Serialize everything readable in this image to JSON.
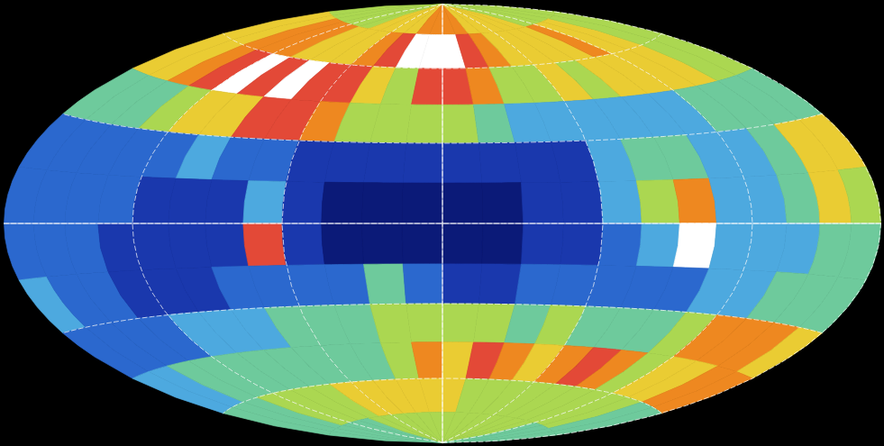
{
  "chart_data": {
    "type": "map",
    "lon": [
      172.5,
      157.5,
      142.5,
      127.5,
      112.5,
      97.5,
      82.5,
      67.5,
      52.5,
      37.5,
      22.5,
      7.5,
      -7.5,
      -22.5,
      -37.5,
      -52.5,
      -67.5,
      -82.5,
      -97.5,
      -112.5,
      -127.5,
      -142.5,
      -157.5,
      -172.5
    ],
    "lat": [
      82.5,
      67.5,
      52.5,
      37.5,
      22.5,
      7.5,
      -7.5,
      -22.5,
      -37.5,
      -52.5,
      -67.5,
      -82.5
    ],
    "values": [
      [
        6,
        6,
        6,
        6,
        6,
        6,
        7,
        7,
        7,
        7,
        8,
        8,
        8,
        8,
        7,
        7,
        7,
        7,
        7,
        6,
        6,
        6,
        6,
        6
      ],
      [
        7,
        7,
        8,
        8,
        8,
        7,
        7,
        7,
        8,
        9,
        10,
        10,
        10,
        9,
        8,
        7,
        7,
        7,
        7,
        8,
        7,
        7,
        6,
        6
      ],
      [
        7,
        7,
        8,
        9,
        10,
        9,
        10,
        9,
        9,
        7,
        6,
        9,
        9,
        8,
        6,
        6,
        7,
        6,
        7,
        7,
        7,
        7,
        6,
        6
      ],
      [
        5,
        5,
        5,
        6,
        7,
        7,
        9,
        9,
        8,
        6,
        6,
        6,
        6,
        5,
        4,
        4,
        4,
        4,
        4,
        4,
        5,
        5,
        5,
        5
      ],
      [
        3,
        3,
        3,
        3,
        3,
        4,
        3,
        3,
        2,
        2,
        2,
        2,
        2,
        2,
        2,
        2,
        4,
        5,
        5,
        4,
        4,
        5,
        7,
        7
      ],
      [
        3,
        3,
        3,
        3,
        2,
        2,
        2,
        4,
        2,
        1,
        1,
        1,
        1,
        1,
        2,
        2,
        4,
        6,
        8,
        4,
        4,
        5,
        7,
        6
      ],
      [
        3,
        3,
        3,
        2,
        2,
        2,
        2,
        9,
        2,
        1,
        1,
        1,
        1,
        1,
        2,
        2,
        3,
        4,
        10,
        4,
        4,
        4,
        5,
        5
      ],
      [
        4,
        3,
        3,
        2,
        2,
        2,
        3,
        3,
        3,
        3,
        5,
        3,
        2,
        2,
        3,
        3,
        3,
        3,
        3,
        4,
        4,
        5,
        5,
        5
      ],
      [
        3,
        3,
        3,
        3,
        4,
        4,
        4,
        5,
        5,
        5,
        6,
        6,
        6,
        6,
        5,
        6,
        5,
        5,
        5,
        6,
        8,
        8,
        8,
        7
      ],
      [
        4,
        4,
        5,
        5,
        5,
        5,
        5,
        5,
        5,
        5,
        6,
        8,
        7,
        9,
        8,
        7,
        8,
        9,
        8,
        6,
        7,
        7,
        8,
        8
      ],
      [
        5,
        5,
        5,
        6,
        6,
        6,
        6,
        7,
        7,
        7,
        7,
        7,
        7,
        6,
        6,
        6,
        6,
        6,
        6,
        6,
        6,
        6,
        5,
        5
      ],
      [
        5,
        5,
        5,
        5,
        5,
        5,
        6,
        6,
        6,
        6,
        6,
        6,
        6,
        6,
        6,
        6,
        6,
        6,
        6,
        6,
        5,
        5,
        5,
        5
      ]
    ],
    "grid": true
  }
}
